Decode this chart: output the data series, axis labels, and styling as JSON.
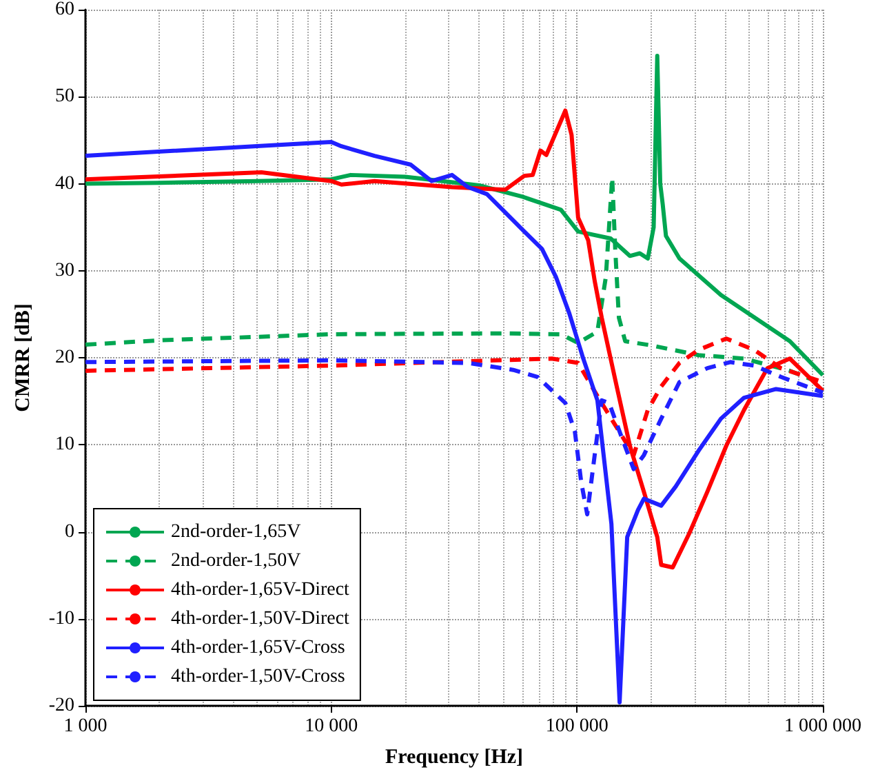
{
  "chart_data": {
    "type": "line",
    "xlabel": "Frequency [Hz]",
    "ylabel": "CMRR [dB]",
    "log": "x",
    "xlim": [
      1000,
      1000000
    ],
    "xticks": [
      {
        "value": 1000,
        "label": "1 000"
      },
      {
        "value": 10000,
        "label": "10 000"
      },
      {
        "value": 100000,
        "label": "100 000"
      },
      {
        "value": 1000000,
        "label": "1 000 000"
      }
    ],
    "ylim": [
      -20,
      60
    ],
    "yticks": [
      -20,
      -10,
      0,
      10,
      20,
      30,
      40,
      50,
      60
    ],
    "grid": true,
    "legend": "bottom left",
    "marker": "none",
    "series": [
      {
        "name": "2nd-order-1,65V",
        "color": "#00a651",
        "line_style": "solid",
        "x": [
          1000,
          2000,
          5000,
          10000,
          12000,
          20000,
          40000,
          60000,
          86000,
          101000,
          137000,
          164000,
          180000,
          194000,
          205000,
          212000,
          218000,
          223000,
          230000,
          261000,
          385000,
          734000,
          1000000
        ],
        "values": [
          40,
          40.1,
          40.3,
          40.5,
          41,
          40.8,
          39.8,
          38.5,
          37,
          34.5,
          33.7,
          31.7,
          32,
          31.4,
          35,
          54.7,
          40,
          37.7,
          34,
          31.4,
          27.2,
          21.9,
          18
        ]
      },
      {
        "name": "2nd-order-1,50V",
        "color": "#00a651",
        "line_style": "dashed",
        "x": [
          1000,
          2000,
          10000,
          50000,
          86000,
          101000,
          121000,
          131000,
          139000,
          143000,
          148000,
          157000,
          202000,
          312000,
          478000,
          734000,
          1000000
        ],
        "values": [
          21.5,
          22,
          22.7,
          22.8,
          22.7,
          21.7,
          23,
          29.3,
          40.7,
          32.5,
          24.6,
          21.9,
          21.4,
          20.3,
          19.9,
          18.5,
          17
        ]
      },
      {
        "name": "4th-order-1,65V-Direct",
        "color": "#ff0000",
        "line_style": "solid",
        "x": [
          1000,
          5200,
          10000,
          11000,
          15000,
          31000,
          51000,
          61000,
          66000,
          71000,
          75000,
          89600,
          95000,
          101000,
          111000,
          118000,
          126000,
          145000,
          164000,
          187000,
          212000,
          220000,
          245000,
          286000,
          339000,
          405000,
          478000,
          595000,
          734000,
          1000000
        ],
        "values": [
          40.5,
          41.3,
          40.3,
          39.9,
          40.3,
          39.6,
          39.3,
          40.9,
          41,
          43.8,
          43.3,
          48.4,
          45.6,
          36.1,
          33.5,
          28.8,
          24.6,
          16.7,
          9.9,
          4.6,
          -0.6,
          -3.8,
          -4.1,
          -0.2,
          4.6,
          9.9,
          14,
          18.8,
          19.9,
          16.2
        ]
      },
      {
        "name": "4th-order-1,50V-Direct",
        "color": "#ff0000",
        "line_style": "dashed",
        "x": [
          1000,
          10000,
          79000,
          101000,
          121000,
          157000,
          170000,
          194000,
          220000,
          261000,
          312000,
          405000,
          526000,
          675000,
          1000000
        ],
        "values": [
          18.5,
          19.1,
          19.9,
          19.4,
          15.6,
          10.4,
          8.8,
          14,
          16.7,
          19.4,
          20.9,
          22.2,
          20.9,
          18.8,
          17.2
        ]
      },
      {
        "name": "4th-order-1,65V-Cross",
        "color": "#2020ff",
        "line_style": "solid",
        "x": [
          1000,
          8600,
          10000,
          11000,
          15000,
          21000,
          25600,
          31000,
          36000,
          43000,
          49000,
          61000,
          72000,
          82000,
          93000,
          106000,
          121000,
          138000,
          149000,
          160000,
          177000,
          187000,
          220000,
          252000,
          312000,
          385000,
          478000,
          645000,
          1000000
        ],
        "values": [
          43.2,
          44.7,
          44.8,
          44.3,
          43.2,
          42.2,
          40.3,
          41,
          39.6,
          38.8,
          37.2,
          34.5,
          32.5,
          29.3,
          25.1,
          19.9,
          15.1,
          0.9,
          -19.6,
          -0.6,
          2.5,
          3.8,
          3,
          5.2,
          9.3,
          13,
          15.4,
          16.4,
          15.6
        ]
      },
      {
        "name": "4th-order-1,50V-Cross",
        "color": "#2020ff",
        "line_style": "dashed",
        "x": [
          1000,
          10000,
          36000,
          55000,
          69000,
          89600,
          98000,
          104000,
          110000,
          116000,
          126000,
          135000,
          149000,
          170000,
          187000,
          220000,
          261000,
          339000,
          420000,
          526000,
          675000,
          1000000
        ],
        "values": [
          19.5,
          19.7,
          19.4,
          18.6,
          17.8,
          14.8,
          11.5,
          5.7,
          2,
          7.2,
          15.1,
          14.8,
          11.5,
          7.2,
          8.8,
          13,
          17.2,
          18.8,
          19.5,
          19.1,
          17.8,
          16
        ]
      }
    ]
  }
}
